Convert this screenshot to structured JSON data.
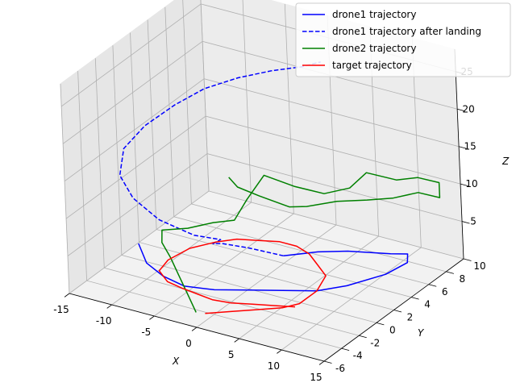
{
  "chart_data": {
    "type": "line",
    "projection": "3d",
    "axes": {
      "x": {
        "label": "X",
        "range": [
          -15,
          15
        ],
        "ticks": [
          -15,
          -10,
          -5,
          0,
          5,
          10,
          15
        ]
      },
      "y": {
        "label": "Y",
        "range": [
          -6,
          10
        ],
        "ticks": [
          -6,
          -4,
          -2,
          0,
          2,
          4,
          6,
          8,
          10
        ]
      },
      "z": {
        "label": "Z",
        "range": [
          0,
          28
        ],
        "ticks": [
          5,
          10,
          15,
          20,
          25
        ]
      }
    },
    "grid": true,
    "legend": {
      "position": "top-right",
      "entries": [
        {
          "label": "drone1 trajectory",
          "color": "#0000ff",
          "style": "solid"
        },
        {
          "label": "drone1 trajectory after landing",
          "color": "#0000ff",
          "style": "dashed"
        },
        {
          "label": "drone2 trajectory",
          "color": "#008000",
          "style": "solid"
        },
        {
          "label": "target trajectory",
          "color": "#ff0000",
          "style": "solid"
        }
      ]
    },
    "series": [
      {
        "name": "drone1 trajectory",
        "color": "#0000ff",
        "style": "solid",
        "points": [
          [
            -14,
            1,
            1
          ],
          [
            -11,
            -1,
            1
          ],
          [
            -8,
            -2,
            1
          ],
          [
            -5,
            -2.5,
            1
          ],
          [
            -2,
            -2,
            1
          ],
          [
            1,
            -1,
            1
          ],
          [
            4,
            0,
            1
          ],
          [
            7,
            1,
            1
          ],
          [
            9,
            2.5,
            1
          ],
          [
            11,
            5,
            1
          ],
          [
            11.5,
            7,
            1
          ],
          [
            10.5,
            8,
            1
          ],
          [
            9,
            7.5,
            1
          ],
          [
            7,
            7,
            1
          ],
          [
            5,
            6.5,
            1
          ],
          [
            2.5,
            5.5,
            1
          ],
          [
            0,
            4,
            1
          ]
        ]
      },
      {
        "name": "drone1 trajectory after landing",
        "color": "#0000ff",
        "style": "dashed",
        "points": [
          [
            0,
            4,
            1
          ],
          [
            -3,
            3,
            2
          ],
          [
            -4,
            1,
            4
          ],
          [
            -3,
            -1,
            6
          ],
          [
            -1,
            -2,
            8
          ],
          [
            -2,
            -4,
            10
          ],
          [
            -5,
            -5,
            12
          ],
          [
            -8,
            -5,
            14
          ],
          [
            -10,
            -4.5,
            16
          ],
          [
            -11,
            -3,
            18
          ],
          [
            -10.5,
            -1,
            19.5
          ],
          [
            -9,
            1,
            21
          ],
          [
            -7,
            2.5,
            22.5
          ],
          [
            -4,
            3.5,
            24
          ],
          [
            -1,
            4.5,
            25
          ],
          [
            2,
            5,
            26
          ],
          [
            4,
            5.3,
            27
          ]
        ]
      },
      {
        "name": "drone2 trajectory",
        "color": "#008000",
        "style": "solid",
        "points": [
          [
            0,
            -6,
            2
          ],
          [
            -2,
            -5,
            3
          ],
          [
            -4,
            -4,
            4
          ],
          [
            -6,
            -3,
            5
          ],
          [
            -8,
            -2,
            5.5
          ],
          [
            -9,
            -1,
            6
          ],
          [
            -7,
            0,
            6
          ],
          [
            -5,
            1,
            6.5
          ],
          [
            -3,
            1.5,
            7
          ],
          [
            -3,
            3,
            8.5
          ],
          [
            -3,
            5,
            10
          ],
          [
            0,
            5.5,
            9
          ],
          [
            3,
            6,
            8.5
          ],
          [
            5,
            7,
            9
          ],
          [
            6,
            8,
            10.5
          ],
          [
            9,
            8.5,
            10
          ],
          [
            11,
            9,
            10.5
          ],
          [
            13,
            9.5,
            10
          ],
          [
            13,
            9.5,
            8
          ],
          [
            11,
            9,
            8.5
          ],
          [
            9,
            8,
            8
          ],
          [
            7,
            7,
            8
          ],
          [
            5,
            5.5,
            8.5
          ],
          [
            3,
            4,
            8.5
          ],
          [
            2,
            3,
            9
          ],
          [
            -1,
            2.5,
            10
          ],
          [
            -3,
            2,
            11
          ],
          [
            -4,
            2,
            12
          ]
        ]
      },
      {
        "name": "target trajectory",
        "color": "#ff0000",
        "style": "solid",
        "points": [
          [
            0,
            -5,
            1
          ],
          [
            2,
            -4,
            1
          ],
          [
            4,
            -3,
            1
          ],
          [
            6,
            -2,
            1
          ],
          [
            7,
            -1,
            1
          ],
          [
            7,
            1,
            1
          ],
          [
            6,
            3,
            1
          ],
          [
            4,
            4,
            1
          ],
          [
            2,
            5,
            1
          ],
          [
            0,
            5.5,
            1
          ],
          [
            -2,
            5.5,
            1
          ],
          [
            -4,
            5,
            1
          ],
          [
            -6,
            4.5,
            1
          ],
          [
            -7.5,
            3.5,
            1
          ],
          [
            -9,
            2,
            1
          ],
          [
            -9.5,
            0,
            1
          ],
          [
            -9,
            -1.5,
            1
          ],
          [
            -7,
            -2.5,
            1
          ],
          [
            -5,
            -2.8,
            1
          ],
          [
            -3,
            -3,
            1
          ],
          [
            -1,
            -3.2,
            1
          ],
          [
            1,
            -3,
            1
          ],
          [
            3,
            -2.5,
            1
          ],
          [
            5,
            -2,
            1
          ],
          [
            7,
            -1.5,
            1
          ]
        ]
      }
    ]
  }
}
